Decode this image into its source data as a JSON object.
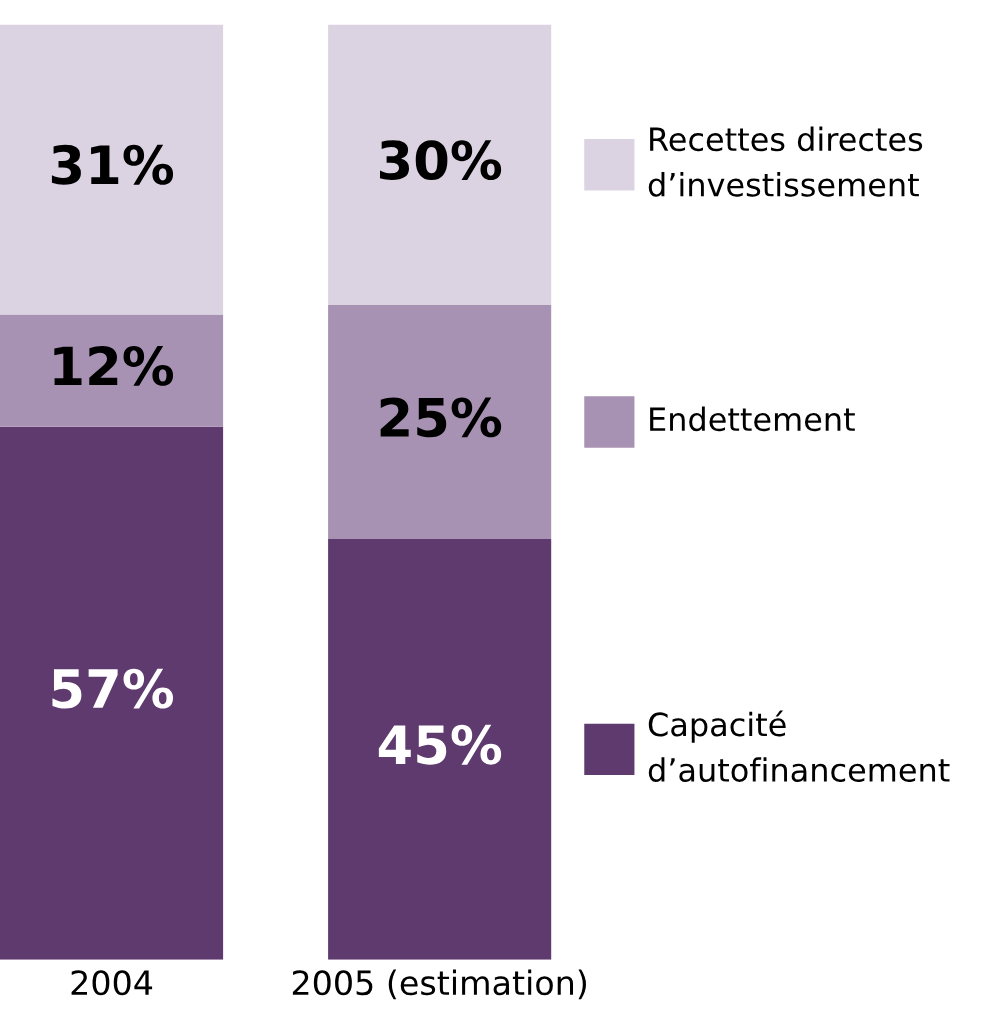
{
  "chart_data": {
    "type": "bar",
    "stacked": true,
    "categories": [
      "2004",
      "2005 (estimation)"
    ],
    "ylim": [
      0,
      100
    ],
    "legend": "right",
    "series": [
      {
        "name": "Capacité d’autofinancement",
        "color": "#5e3a6e",
        "values": [
          57,
          45
        ],
        "value_labels": [
          "57%",
          "45%"
        ]
      },
      {
        "name": "Endettement",
        "color": "#a892b3",
        "values": [
          12,
          25
        ],
        "value_labels": [
          "12%",
          "25%"
        ]
      },
      {
        "name": "Recettes directes d’investissement",
        "color": "#dcd3e2",
        "values": [
          31,
          30
        ],
        "value_labels": [
          "31%",
          "30%"
        ]
      }
    ]
  }
}
